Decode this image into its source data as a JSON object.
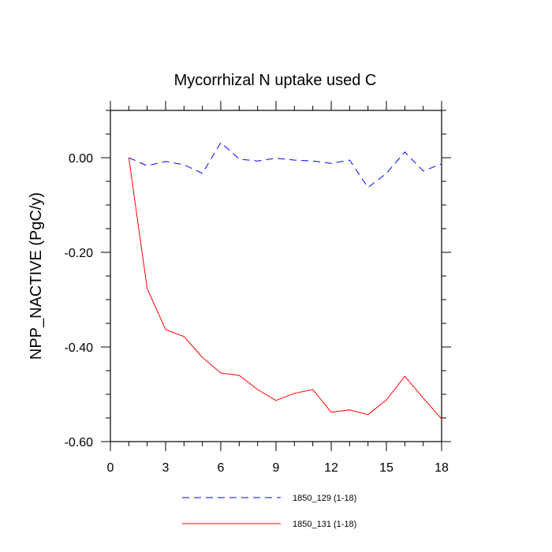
{
  "chart_data": {
    "type": "line",
    "title": "Mycorrhizal N uptake used C",
    "xlabel": "",
    "ylabel": "NPP_NACTIVE  (PgC/y)",
    "xlim": [
      0,
      18
    ],
    "ylim": [
      -0.6,
      0.1
    ],
    "xticks": [
      0,
      3,
      6,
      9,
      12,
      15,
      18
    ],
    "xtick_labels": [
      "0",
      "3",
      "6",
      "9",
      "12",
      "15",
      "18"
    ],
    "yticks": [
      0.0,
      -0.2,
      -0.4,
      -0.6
    ],
    "ytick_labels": [
      "0.00",
      "-0.20",
      "-0.40",
      "-0.60"
    ],
    "grid": false,
    "legend_position": "bottom",
    "x": [
      1,
      2,
      3,
      4,
      5,
      6,
      7,
      8,
      9,
      10,
      11,
      12,
      13,
      14,
      15,
      16,
      17,
      18
    ],
    "series": [
      {
        "name": "1850_129 (1-18)",
        "color": "#0000ff",
        "dash": "dashed",
        "values": [
          0.0,
          -0.017,
          -0.008,
          -0.015,
          -0.033,
          0.032,
          -0.003,
          -0.007,
          -0.001,
          -0.005,
          -0.007,
          -0.012,
          -0.005,
          -0.063,
          -0.033,
          0.012,
          -0.028,
          -0.013
        ]
      },
      {
        "name": "1850_131 (1-18)",
        "color": "#ff0000",
        "dash": "solid",
        "values": [
          0.0,
          -0.277,
          -0.363,
          -0.378,
          -0.422,
          -0.455,
          -0.46,
          -0.49,
          -0.513,
          -0.498,
          -0.49,
          -0.538,
          -0.533,
          -0.543,
          -0.512,
          -0.462,
          -0.508,
          -0.552
        ]
      }
    ]
  }
}
